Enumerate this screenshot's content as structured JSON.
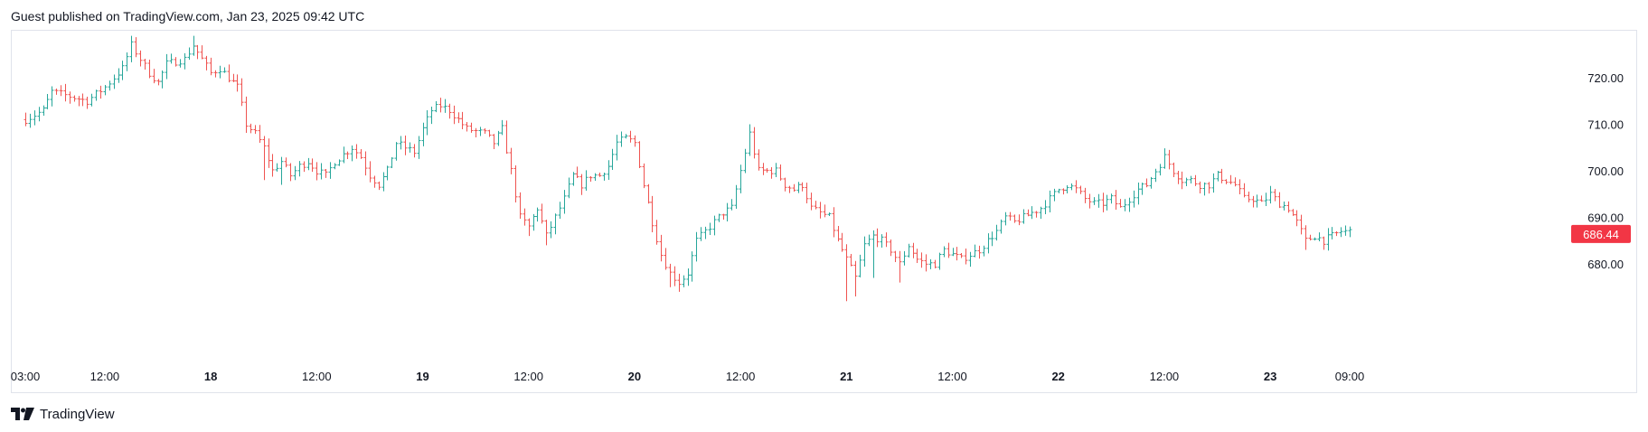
{
  "header": {
    "attribution": "Guest published on TradingView.com, Jan 23, 2025 09:42 UTC"
  },
  "footer": {
    "brand": "TradingView"
  },
  "colors": {
    "up": "#26a69a",
    "down": "#ef5350",
    "last_price_bg": "#f23645",
    "last_price_text": "#ffffff",
    "axis_text": "#131722",
    "border": "#e0e3eb"
  },
  "chart_data": {
    "type": "ohlc",
    "last_price": "686.44",
    "last_value": 686.44,
    "ylim": [
      670,
      728
    ],
    "y_ticks": [
      {
        "value": 680,
        "label": "680.00"
      },
      {
        "value": 690,
        "label": "690.00"
      },
      {
        "value": 700,
        "label": "700.00"
      },
      {
        "value": 710,
        "label": "710.00"
      },
      {
        "value": 720,
        "label": "720.00"
      }
    ],
    "x_ticks": [
      {
        "label": "03:00",
        "bold": false,
        "t": 0
      },
      {
        "label": "12:00",
        "bold": false,
        "t": 9
      },
      {
        "label": "18",
        "bold": true,
        "t": 21
      },
      {
        "label": "12:00",
        "bold": false,
        "t": 33
      },
      {
        "label": "19",
        "bold": true,
        "t": 45
      },
      {
        "label": "12:00",
        "bold": false,
        "t": 57
      },
      {
        "label": "20",
        "bold": true,
        "t": 69
      },
      {
        "label": "12:00",
        "bold": false,
        "t": 81
      },
      {
        "label": "21",
        "bold": true,
        "t": 93
      },
      {
        "label": "12:00",
        "bold": false,
        "t": 105
      },
      {
        "label": "22",
        "bold": true,
        "t": 117
      },
      {
        "label": "12:00",
        "bold": false,
        "t": 129
      },
      {
        "label": "23",
        "bold": true,
        "t": 141
      },
      {
        "label": "09:00",
        "bold": false,
        "t": 150
      }
    ],
    "close_path": [
      [
        0,
        711
      ],
      [
        2,
        713
      ],
      [
        3,
        717
      ],
      [
        5,
        716
      ],
      [
        7,
        715
      ],
      [
        9,
        718
      ],
      [
        11,
        722
      ],
      [
        12,
        727
      ],
      [
        13,
        724
      ],
      [
        14,
        721
      ],
      [
        15,
        719
      ],
      [
        16,
        723
      ],
      [
        18,
        724
      ],
      [
        19,
        727
      ],
      [
        20,
        724
      ],
      [
        21,
        721
      ],
      [
        22,
        722
      ],
      [
        24,
        718
      ],
      [
        25,
        710
      ],
      [
        26,
        708
      ],
      [
        27,
        705
      ],
      [
        28,
        700
      ],
      [
        29,
        702
      ],
      [
        30,
        699
      ],
      [
        31,
        701
      ],
      [
        32,
        702
      ],
      [
        33,
        700
      ],
      [
        34,
        699
      ],
      [
        35,
        702
      ],
      [
        37,
        705
      ],
      [
        38,
        703
      ],
      [
        39,
        699
      ],
      [
        40,
        697
      ],
      [
        41,
        700
      ],
      [
        42,
        706
      ],
      [
        43,
        705
      ],
      [
        44,
        704
      ],
      [
        45,
        709
      ],
      [
        46,
        713
      ],
      [
        47,
        714
      ],
      [
        48,
        713
      ],
      [
        50,
        709
      ],
      [
        52,
        708
      ],
      [
        53,
        706
      ],
      [
        54,
        709
      ],
      [
        55,
        700
      ],
      [
        56,
        690
      ],
      [
        57,
        688
      ],
      [
        58,
        692
      ],
      [
        59,
        686
      ],
      [
        60,
        690
      ],
      [
        61,
        694
      ],
      [
        62,
        699
      ],
      [
        63,
        697
      ],
      [
        64,
        699
      ],
      [
        65,
        699
      ],
      [
        66,
        701
      ],
      [
        67,
        706
      ],
      [
        68,
        707
      ],
      [
        69,
        706
      ],
      [
        70,
        697
      ],
      [
        71,
        689
      ],
      [
        72,
        682
      ],
      [
        73,
        678
      ],
      [
        74,
        676
      ],
      [
        75,
        678
      ],
      [
        76,
        685
      ],
      [
        77,
        687
      ],
      [
        78,
        689
      ],
      [
        79,
        691
      ],
      [
        80,
        692
      ],
      [
        81,
        700
      ],
      [
        82,
        708
      ],
      [
        83,
        700
      ],
      [
        84,
        700
      ],
      [
        85,
        700
      ],
      [
        86,
        697
      ],
      [
        87,
        696
      ],
      [
        88,
        697
      ],
      [
        89,
        692
      ],
      [
        90,
        691
      ],
      [
        91,
        690
      ],
      [
        92,
        685
      ],
      [
        93,
        681
      ],
      [
        94,
        677
      ],
      [
        95,
        684
      ],
      [
        96,
        686
      ],
      [
        97,
        685
      ],
      [
        98,
        683
      ],
      [
        99,
        680
      ],
      [
        100,
        684
      ],
      [
        101,
        681
      ],
      [
        102,
        680
      ],
      [
        103,
        680
      ],
      [
        104,
        683
      ],
      [
        105,
        682
      ],
      [
        106,
        681
      ],
      [
        107,
        682
      ],
      [
        108,
        683
      ],
      [
        109,
        685
      ],
      [
        110,
        687
      ],
      [
        111,
        690
      ],
      [
        112,
        689
      ],
      [
        113,
        690
      ],
      [
        114,
        691
      ],
      [
        115,
        692
      ],
      [
        116,
        694
      ],
      [
        117,
        696
      ],
      [
        118,
        697
      ],
      [
        119,
        696
      ],
      [
        120,
        694
      ],
      [
        121,
        693
      ],
      [
        122,
        693
      ],
      [
        123,
        694
      ],
      [
        124,
        692
      ],
      [
        125,
        694
      ],
      [
        126,
        696
      ],
      [
        127,
        697
      ],
      [
        128,
        700
      ],
      [
        129,
        703
      ],
      [
        130,
        700
      ],
      [
        131,
        698
      ],
      [
        132,
        698
      ],
      [
        133,
        697
      ],
      [
        134,
        697
      ],
      [
        135,
        699
      ],
      [
        136,
        698
      ],
      [
        137,
        697
      ],
      [
        138,
        694
      ],
      [
        139,
        694
      ],
      [
        140,
        693
      ],
      [
        141,
        695
      ],
      [
        142,
        693
      ],
      [
        143,
        692
      ],
      [
        144,
        689
      ],
      [
        145,
        685
      ],
      [
        146,
        686
      ],
      [
        147,
        685
      ],
      [
        148,
        686
      ],
      [
        149,
        687
      ],
      [
        150,
        687
      ]
    ],
    "extreme_lows": [
      {
        "t": 27,
        "low": 698
      },
      {
        "t": 29,
        "low": 697
      },
      {
        "t": 57,
        "low": 686
      },
      {
        "t": 59,
        "low": 684
      },
      {
        "t": 73,
        "low": 675
      },
      {
        "t": 74,
        "low": 674
      },
      {
        "t": 93,
        "low": 672
      },
      {
        "t": 94,
        "low": 673
      },
      {
        "t": 96,
        "low": 677
      },
      {
        "t": 99,
        "low": 676
      },
      {
        "t": 145,
        "low": 683
      }
    ],
    "extreme_highs": [
      {
        "t": 12,
        "high": 729
      },
      {
        "t": 19,
        "high": 729
      },
      {
        "t": 47,
        "high": 715
      },
      {
        "t": 82,
        "high": 710
      },
      {
        "t": 129,
        "high": 704
      },
      {
        "t": 135,
        "high": 700
      }
    ]
  }
}
